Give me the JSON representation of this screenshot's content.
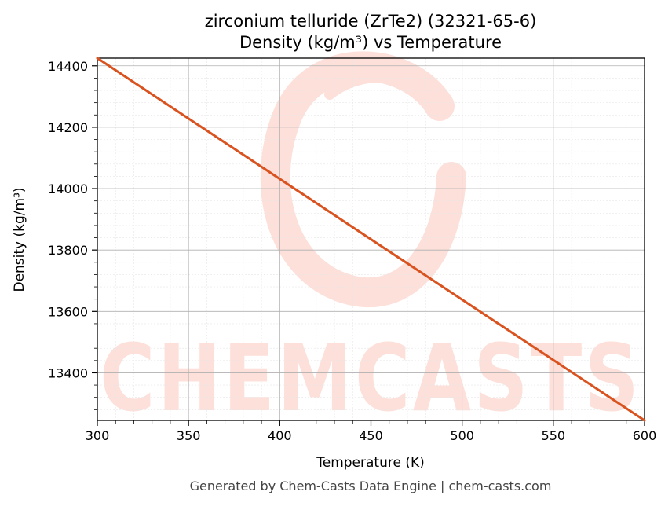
{
  "chart_data": {
    "type": "line",
    "title": "zirconium telluride (ZrTe2) (32321-65-6)",
    "subtitle": "Density (kg/m³) vs Temperature",
    "xlabel": "Temperature (K)",
    "ylabel": "Density (kg/m³)",
    "xlim": [
      300,
      600
    ],
    "ylim": [
      13245,
      14425
    ],
    "x_ticks": [
      300,
      350,
      400,
      450,
      500,
      550,
      600
    ],
    "y_ticks": [
      13400,
      13600,
      13800,
      14000,
      14200,
      14400
    ],
    "grid": true,
    "series": [
      {
        "x": [
          300,
          600
        ],
        "y": [
          14425,
          13245
        ],
        "color": "#d95320"
      }
    ]
  },
  "watermark": {
    "text": "CHEMCASTS",
    "color": "#fde0da"
  },
  "footer": "Generated by Chem-Casts Data Engine | chem-casts.com"
}
